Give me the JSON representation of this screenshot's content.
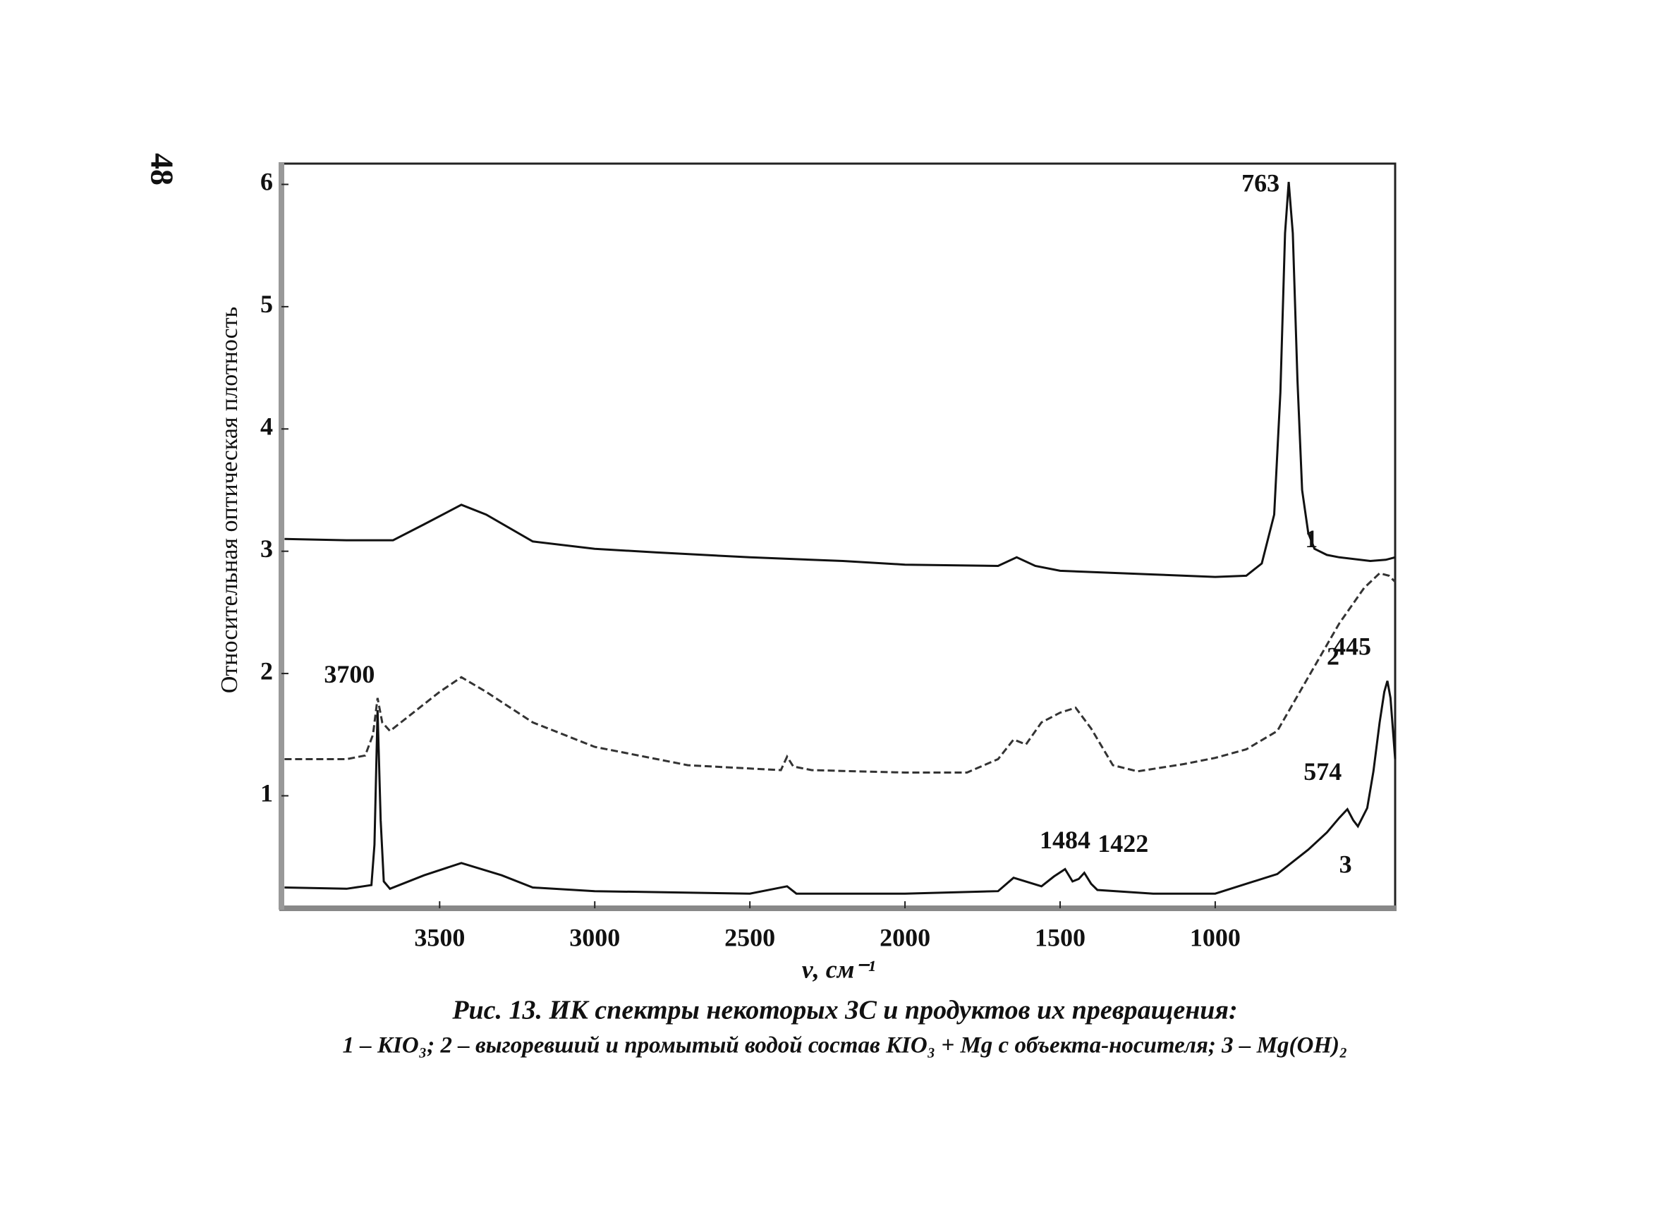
{
  "page_number": "48",
  "chart_data": {
    "type": "line",
    "y_label": "Относительная оптическая плотность",
    "x_label": "ν, см⁻¹",
    "xlim": [
      4010,
      420
    ],
    "ylim": [
      0.08,
      6.17
    ],
    "xticks": [
      3500,
      3000,
      2500,
      2000,
      1500,
      1000
    ],
    "yticks": [
      1,
      2,
      3,
      4,
      5,
      6
    ],
    "grid": false,
    "series": [
      {
        "name": "1",
        "color": "#111111",
        "style": "solid",
        "x": [
          4000,
          3800,
          3650,
          3550,
          3430,
          3350,
          3200,
          3000,
          2800,
          2500,
          2200,
          2000,
          1700,
          1640,
          1580,
          1500,
          1200,
          1000,
          900,
          850,
          810,
          790,
          775,
          763,
          750,
          735,
          720,
          700,
          680,
          640,
          600,
          500,
          450,
          420
        ],
        "values": [
          3.1,
          3.09,
          3.09,
          3.22,
          3.38,
          3.3,
          3.08,
          3.02,
          2.99,
          2.95,
          2.92,
          2.89,
          2.88,
          2.95,
          2.88,
          2.84,
          2.81,
          2.79,
          2.8,
          2.9,
          3.3,
          4.3,
          5.6,
          6.02,
          5.6,
          4.4,
          3.5,
          3.15,
          3.02,
          2.97,
          2.95,
          2.92,
          2.93,
          2.95
        ]
      },
      {
        "name": "2",
        "color": "#333333",
        "style": "dashed",
        "x": [
          4000,
          3800,
          3740,
          3715,
          3700,
          3685,
          3660,
          3600,
          3500,
          3430,
          3350,
          3200,
          3000,
          2700,
          2400,
          2380,
          2360,
          2300,
          2000,
          1800,
          1700,
          1650,
          1610,
          1560,
          1500,
          1450,
          1400,
          1330,
          1250,
          1100,
          1000,
          900,
          800,
          700,
          600,
          520,
          470,
          440,
          420
        ],
        "values": [
          1.3,
          1.3,
          1.33,
          1.5,
          1.8,
          1.6,
          1.53,
          1.65,
          1.85,
          1.97,
          1.85,
          1.6,
          1.4,
          1.25,
          1.21,
          1.32,
          1.24,
          1.21,
          1.19,
          1.19,
          1.3,
          1.46,
          1.42,
          1.6,
          1.68,
          1.72,
          1.55,
          1.25,
          1.2,
          1.26,
          1.31,
          1.38,
          1.53,
          1.97,
          2.41,
          2.7,
          2.82,
          2.8,
          2.75
        ]
      },
      {
        "name": "3",
        "color": "#111111",
        "style": "solid",
        "x": [
          4000,
          3800,
          3720,
          3710,
          3700,
          3690,
          3680,
          3660,
          3550,
          3430,
          3300,
          3200,
          3000,
          2500,
          2380,
          2350,
          2000,
          1700,
          1650,
          1560,
          1520,
          1484,
          1460,
          1440,
          1422,
          1400,
          1380,
          1200,
          1000,
          800,
          700,
          640,
          600,
          574,
          555,
          540,
          510,
          490,
          470,
          455,
          445,
          435,
          420
        ],
        "values": [
          0.25,
          0.24,
          0.27,
          0.6,
          1.7,
          0.8,
          0.3,
          0.24,
          0.35,
          0.45,
          0.35,
          0.25,
          0.22,
          0.2,
          0.26,
          0.2,
          0.2,
          0.22,
          0.33,
          0.26,
          0.34,
          0.4,
          0.3,
          0.32,
          0.37,
          0.28,
          0.23,
          0.2,
          0.2,
          0.36,
          0.56,
          0.7,
          0.82,
          0.89,
          0.8,
          0.75,
          0.9,
          1.2,
          1.6,
          1.85,
          1.94,
          1.8,
          1.3
        ]
      }
    ],
    "annotations": [
      {
        "label": "763",
        "x": 763,
        "y": 6.02
      },
      {
        "label": "3700",
        "x": 3700,
        "y": 1.8
      },
      {
        "label": "1484",
        "x": 1484,
        "y": 0.4
      },
      {
        "label": "1422",
        "x": 1422,
        "y": 0.37
      },
      {
        "label": "574",
        "x": 574,
        "y": 0.89
      },
      {
        "label": "445",
        "x": 445,
        "y": 1.94
      }
    ]
  },
  "caption": {
    "title": "Рис. 13. ИК спектры некоторых ЗС и продуктов их превращения:",
    "legend": "1 – KIO₃; 2 – выгоревший и промытый водой состав KIO₃ + Mg с объекта-носителя; 3 – Mg(OH)₂"
  }
}
